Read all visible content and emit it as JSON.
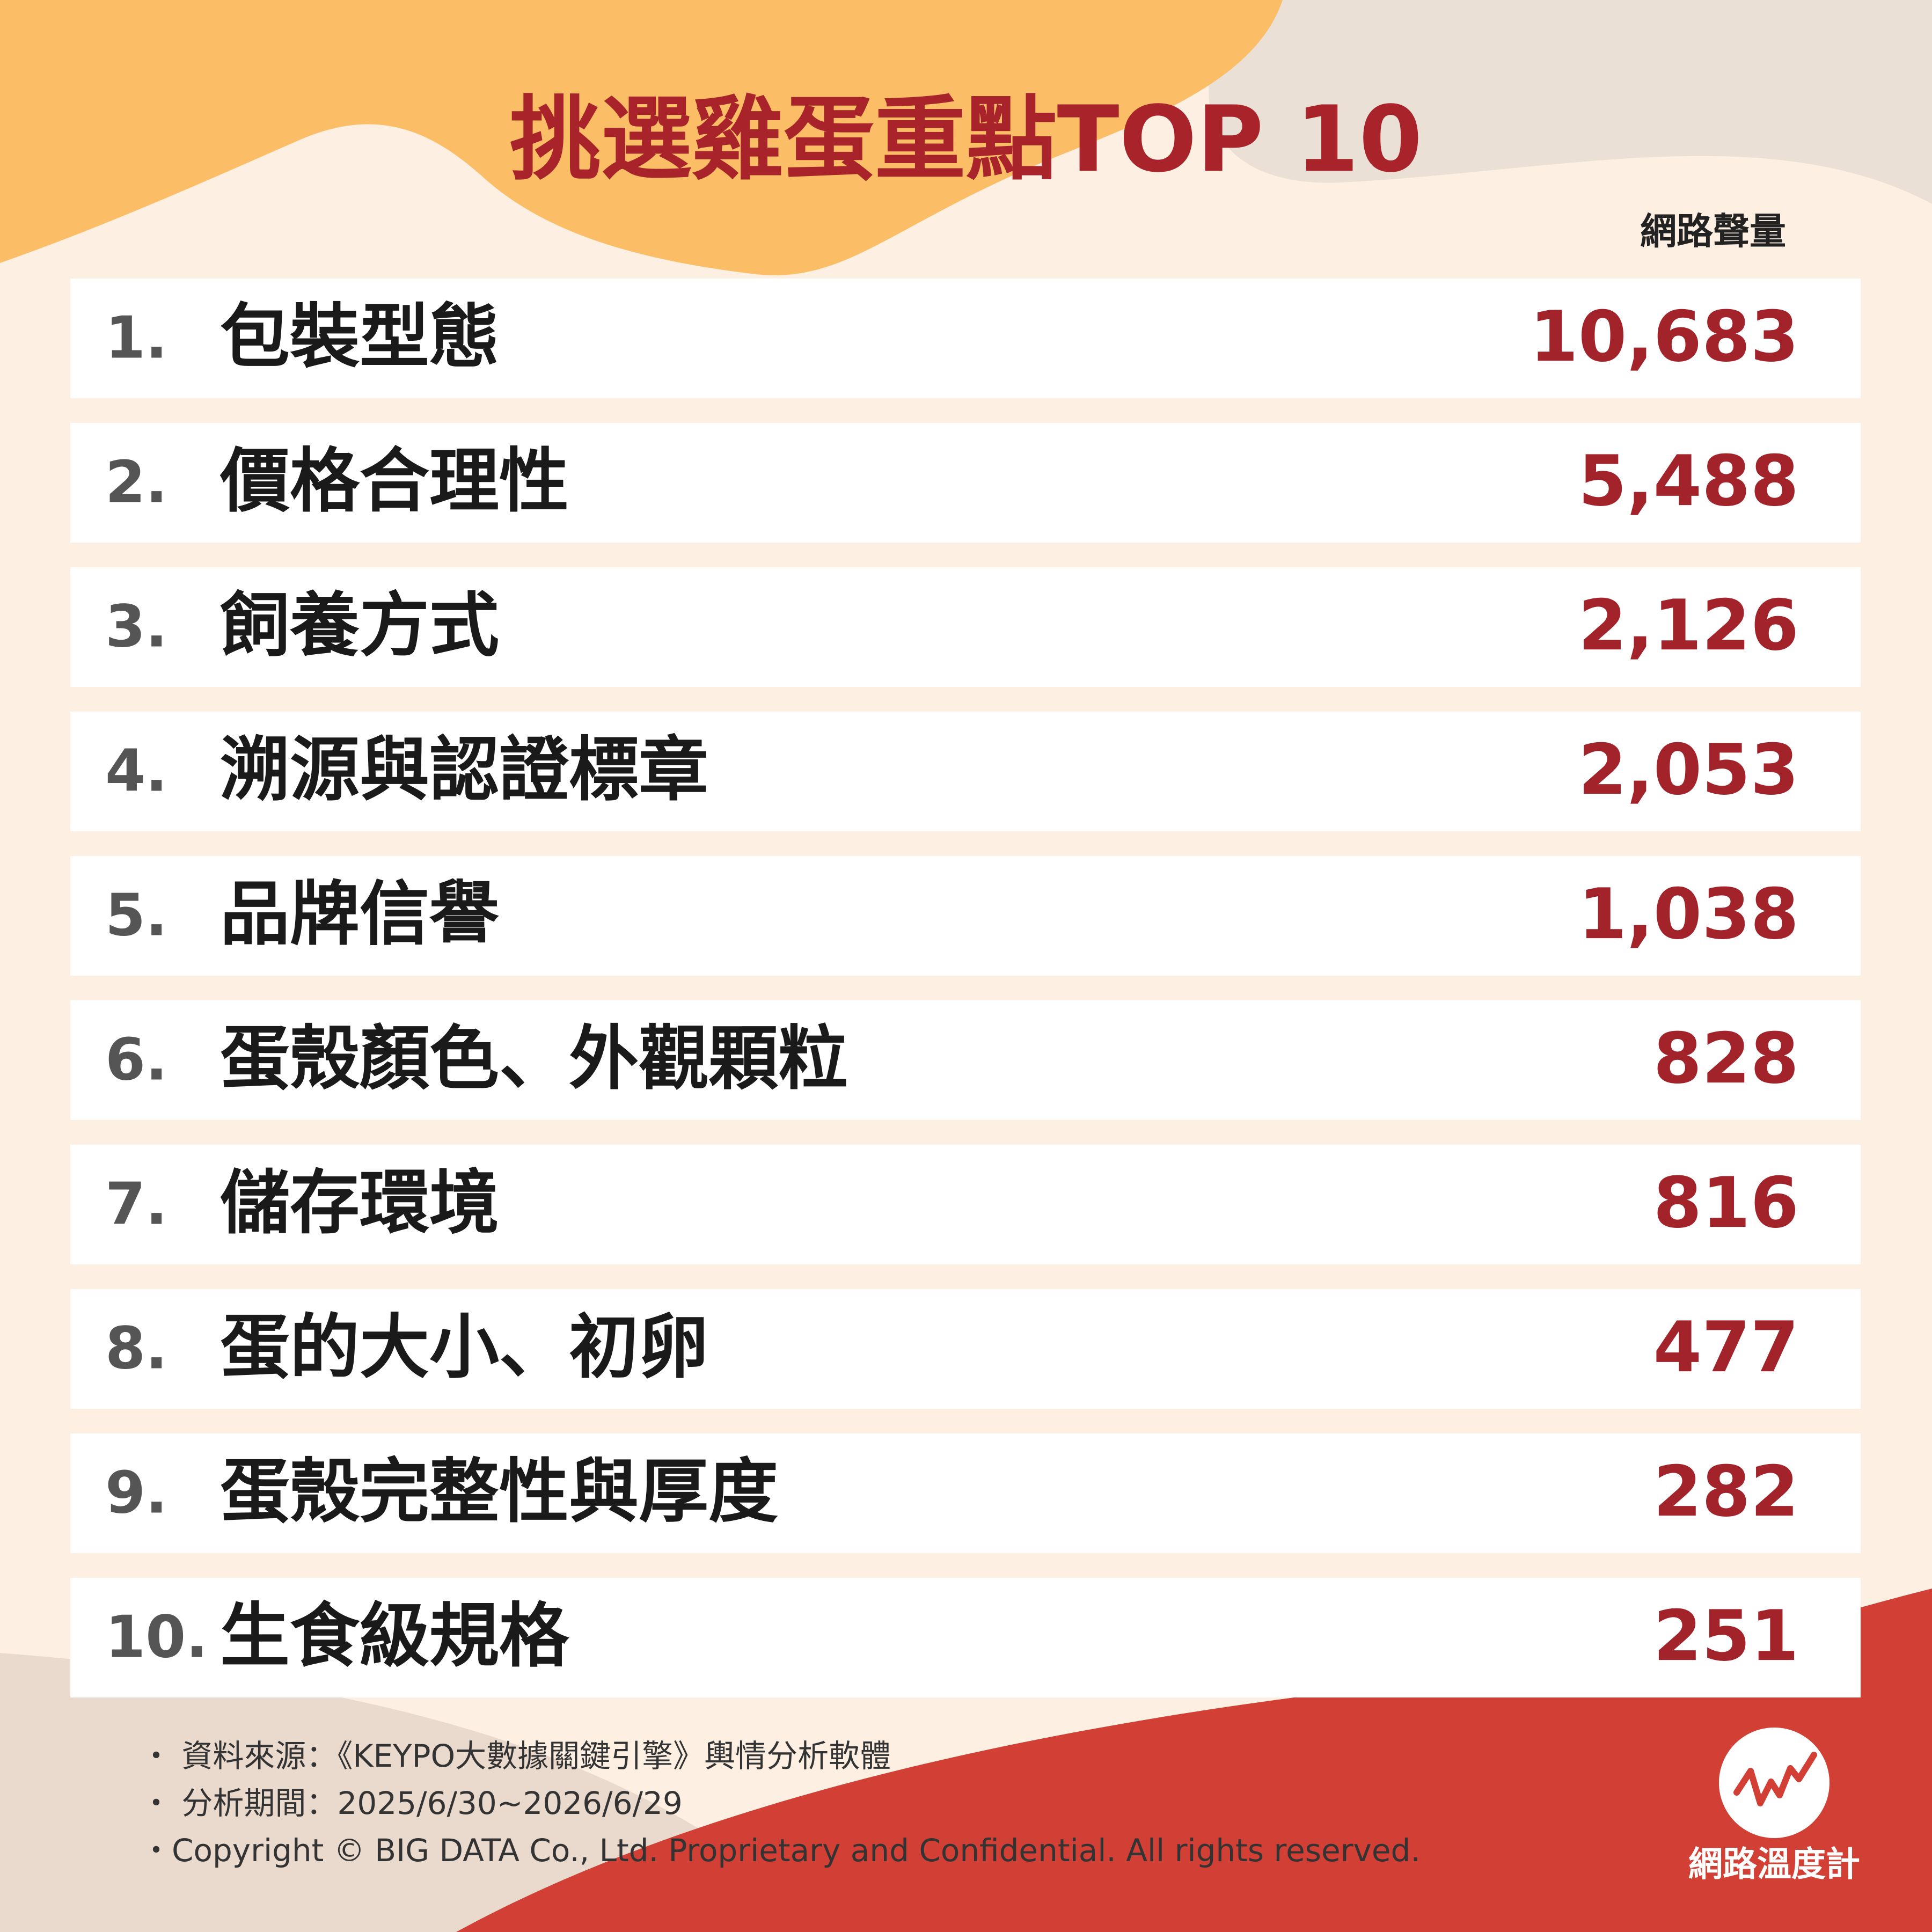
{
  "header": {
    "title": "挑選雞蛋重點TOP 10",
    "column_label": "網路聲量"
  },
  "table": {
    "rows": [
      [
        "1.",
        "包裝型態",
        "10,683"
      ],
      [
        "2.",
        "價格合理性",
        "5,488"
      ],
      [
        "3.",
        "飼養方式",
        "2,126"
      ],
      [
        "4.",
        "溯源與認證標章",
        "2,053"
      ],
      [
        "5.",
        "品牌信譽",
        "1,038"
      ],
      [
        "6.",
        "蛋殼顏色、外觀顆粒",
        "828"
      ],
      [
        "7.",
        "儲存環境",
        "816"
      ],
      [
        "8.",
        "蛋的大小、初卵",
        "477"
      ],
      [
        "9.",
        "蛋殼完整性與厚度",
        "282"
      ],
      [
        "10.",
        "生食級規格",
        "251"
      ]
    ]
  },
  "footer": {
    "notes": [
      "・ 資料來源：《KEYPO大數據關鍵引擎》輿情分析軟體",
      "・ 分析期間：2025/6/30~2026/6/29",
      "・Copyright © BIG DATA Co., Ltd. Proprietary and Confidential. All rights reserved."
    ],
    "logo_text": "網路溫度計"
  }
}
